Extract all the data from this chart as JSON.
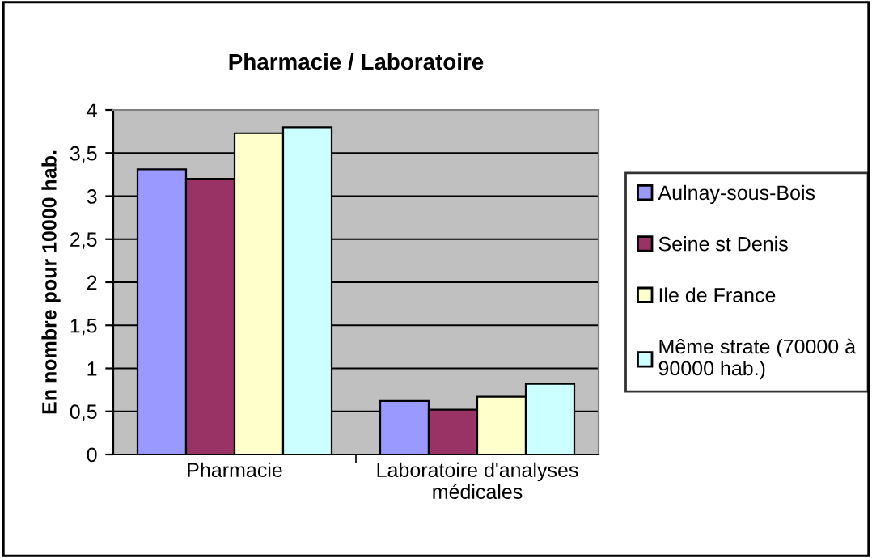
{
  "chart_data": {
    "type": "bar",
    "title": "Pharmacie / Laboratoire",
    "ylabel": "En nombre pour 10000 hab.",
    "categories": [
      "Pharmacie",
      "Laboratoire d'analyses\nmédicales"
    ],
    "series": [
      {
        "name": "Aulnay-sous-Bois",
        "color": "#9999ff",
        "values": [
          3.31,
          0.62
        ]
      },
      {
        "name": "Seine st Denis",
        "color": "#993366",
        "values": [
          3.2,
          0.52
        ]
      },
      {
        "name": "Ile de France",
        "color": "#ffffcc",
        "values": [
          3.73,
          0.67
        ]
      },
      {
        "name": "Même strate (70000 à\n90000 hab.)",
        "color": "#ccffff",
        "values": [
          3.8,
          0.82
        ]
      }
    ],
    "ylim": [
      0,
      4
    ],
    "yticks": [
      0,
      {
        "value": 0.5,
        "label": "0,5"
      },
      1,
      {
        "value": 1.5,
        "label": "1,5"
      },
      2,
      {
        "value": 2.5,
        "label": "2,5"
      },
      3,
      {
        "value": 3.5,
        "label": "3,5"
      },
      4
    ],
    "grid": "y",
    "legend": "right"
  }
}
